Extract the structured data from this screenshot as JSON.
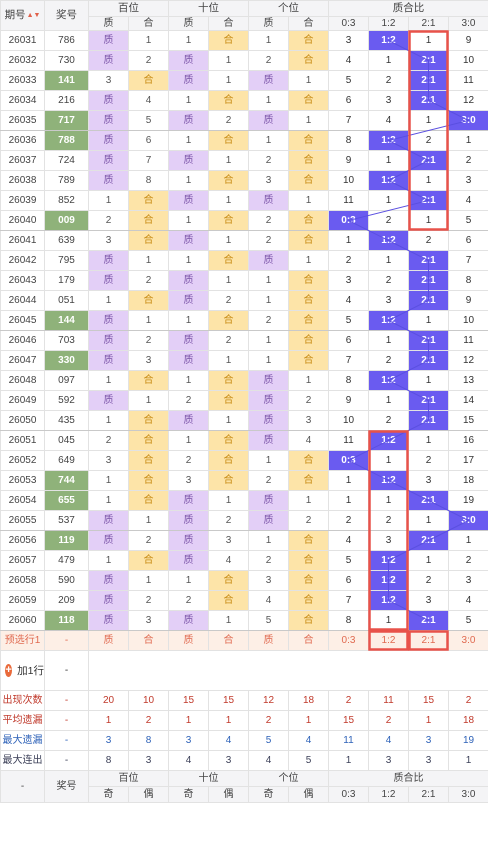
{
  "header": {
    "issue_label": "期号",
    "prize_label": "奖号",
    "groups": [
      "百位",
      "十位",
      "个位",
      "质合比"
    ],
    "sub_zhi": "质",
    "sub_he": "合",
    "ratio_labels": [
      "0:3",
      "1:2",
      "2:1",
      "3:0"
    ]
  },
  "rows": [
    {
      "id": "26031",
      "num": "786",
      "b": "z",
      "s": "h",
      "g": "h",
      "bv": 1,
      "sv": 1,
      "gv": 1,
      "r": [
        3,
        "1:2",
        1,
        9
      ]
    },
    {
      "id": "26032",
      "num": "730",
      "b": "z",
      "s": "z",
      "g": "h",
      "bv": 2,
      "sv": 1,
      "gv": 2,
      "r": [
        4,
        1,
        "2:1",
        10
      ]
    },
    {
      "id": "26033",
      "num": "141",
      "hot": true,
      "b": "h",
      "s": "z",
      "g": "z",
      "bv": 3,
      "sv": 1,
      "gv": 1,
      "r": [
        5,
        2,
        "2:1",
        11
      ]
    },
    {
      "id": "26034",
      "num": "216",
      "b": "z",
      "s": "h",
      "g": "h",
      "bv": 4,
      "sv": 1,
      "gv": 1,
      "r": [
        6,
        3,
        "2:1",
        12
      ]
    },
    {
      "id": "26035",
      "num": "717",
      "hot": true,
      "b": "z",
      "s": "z",
      "g": "z",
      "bv": 5,
      "sv": 2,
      "gv": 1,
      "r": [
        7,
        4,
        1,
        "3:0"
      ]
    },
    {
      "id": "26036",
      "num": "788",
      "hot": true,
      "b": "z",
      "s": "h",
      "g": "h",
      "bv": 6,
      "sv": 1,
      "gv": 1,
      "r": [
        8,
        "1:2",
        2,
        1
      ]
    },
    {
      "id": "26037",
      "num": "724",
      "b": "z",
      "s": "z",
      "g": "h",
      "bv": 7,
      "sv": 1,
      "gv": 2,
      "r": [
        9,
        1,
        "2:1",
        2
      ]
    },
    {
      "id": "26038",
      "num": "789",
      "b": "z",
      "s": "h",
      "g": "h",
      "bv": 8,
      "sv": 1,
      "gv": 3,
      "r": [
        10,
        "1:2",
        1,
        3
      ]
    },
    {
      "id": "26039",
      "num": "852",
      "b": "h",
      "s": "z",
      "g": "z",
      "bv": 1,
      "sv": 1,
      "gv": 1,
      "r": [
        11,
        1,
        "2:1",
        4
      ]
    },
    {
      "id": "26040",
      "num": "009",
      "hot": true,
      "b": "h",
      "s": "h",
      "g": "h",
      "bv": 2,
      "sv": 1,
      "gv": 2,
      "r": [
        "0:3",
        2,
        1,
        5
      ]
    },
    {
      "id": "26041",
      "num": "639",
      "b": "h",
      "s": "z",
      "g": "h",
      "bv": 3,
      "sv": 1,
      "gv": 2,
      "r": [
        1,
        "1:2",
        2,
        6
      ]
    },
    {
      "id": "26042",
      "num": "795",
      "b": "z",
      "s": "h",
      "g": "z",
      "bv": 1,
      "sv": 1,
      "gv": 1,
      "r": [
        2,
        1,
        "2:1",
        7
      ]
    },
    {
      "id": "26043",
      "num": "179",
      "b": "z",
      "s": "z",
      "g": "h",
      "bv": 2,
      "sv": 1,
      "gv": 1,
      "r": [
        3,
        2,
        "2:1",
        8
      ]
    },
    {
      "id": "26044",
      "num": "051",
      "b": "h",
      "s": "z",
      "g": "h",
      "bv": 1,
      "sv": 2,
      "gv": 1,
      "r": [
        4,
        3,
        "2:1",
        9
      ]
    },
    {
      "id": "26045",
      "num": "144",
      "hot": true,
      "b": "z",
      "s": "h",
      "g": "h",
      "bv": 1,
      "sv": 1,
      "gv": 2,
      "r": [
        5,
        "1:2",
        1,
        10
      ]
    },
    {
      "id": "26046",
      "num": "703",
      "b": "z",
      "s": "z",
      "g": "h",
      "bv": 2,
      "sv": 2,
      "gv": 1,
      "r": [
        6,
        1,
        "2:1",
        11
      ]
    },
    {
      "id": "26047",
      "num": "330",
      "hot": true,
      "b": "z",
      "s": "z",
      "g": "h",
      "bv": 3,
      "sv": 1,
      "gv": 1,
      "r": [
        7,
        2,
        "2:1",
        12
      ]
    },
    {
      "id": "26048",
      "num": "097",
      "b": "h",
      "s": "h",
      "g": "z",
      "bv": 1,
      "sv": 1,
      "gv": 1,
      "r": [
        8,
        "1:2",
        1,
        13
      ]
    },
    {
      "id": "26049",
      "num": "592",
      "b": "z",
      "s": "h",
      "g": "z",
      "bv": 1,
      "sv": 2,
      "gv": 2,
      "r": [
        9,
        1,
        "2:1",
        14
      ]
    },
    {
      "id": "26050",
      "num": "435",
      "b": "h",
      "s": "z",
      "g": "z",
      "bv": 1,
      "sv": 1,
      "gv": 3,
      "r": [
        10,
        2,
        "2:1",
        15
      ]
    },
    {
      "id": "26051",
      "num": "045",
      "b": "h",
      "s": "h",
      "g": "z",
      "bv": 2,
      "sv": 1,
      "gv": 4,
      "r": [
        11,
        "1:2",
        1,
        16
      ]
    },
    {
      "id": "26052",
      "num": "649",
      "b": "h",
      "s": "h",
      "g": "h",
      "bv": 3,
      "sv": 2,
      "gv": 1,
      "r": [
        "0:3",
        1,
        2,
        17
      ]
    },
    {
      "id": "26053",
      "num": "744",
      "hot": true,
      "b": "h",
      "s": "h",
      "g": "h",
      "bv": 1,
      "sv": 3,
      "gv": 2,
      "r": [
        1,
        "1:2",
        3,
        18
      ]
    },
    {
      "id": "26054",
      "num": "655",
      "hot": true,
      "b": "h",
      "s": "z",
      "g": "z",
      "bv": 1,
      "sv": 1,
      "gv": 1,
      "r": [
        1,
        1,
        "2:1",
        19
      ]
    },
    {
      "id": "26055",
      "num": "537",
      "b": "z",
      "s": "z",
      "g": "z",
      "bv": 1,
      "sv": 2,
      "gv": 2,
      "r": [
        2,
        2,
        1,
        "3:0"
      ]
    },
    {
      "id": "26056",
      "num": "119",
      "hot": true,
      "b": "z",
      "s": "z",
      "g": "h",
      "bv": 2,
      "sv": 3,
      "gv": 1,
      "r": [
        4,
        3,
        "2:1",
        1
      ]
    },
    {
      "id": "26057",
      "num": "479",
      "b": "h",
      "s": "z",
      "g": "h",
      "bv": 1,
      "sv": 4,
      "gv": 2,
      "r": [
        5,
        "1:2",
        1,
        2
      ]
    },
    {
      "id": "26058",
      "num": "590",
      "b": "z",
      "s": "h",
      "g": "h",
      "bv": 1,
      "sv": 1,
      "gv": 3,
      "r": [
        6,
        "1:2",
        2,
        3
      ]
    },
    {
      "id": "26059",
      "num": "209",
      "b": "z",
      "s": "h",
      "g": "h",
      "bv": 2,
      "sv": 2,
      "gv": 4,
      "r": [
        7,
        "1:2",
        3,
        4
      ]
    },
    {
      "id": "26060",
      "num": "118",
      "hot": true,
      "b": "z",
      "s": "z",
      "g": "h",
      "bv": 3,
      "sv": 1,
      "gv": 5,
      "r": [
        8,
        1,
        "2:1",
        5
      ]
    }
  ],
  "preselect": {
    "label": "预选行1",
    "dash": "-",
    "cells": [
      "质",
      "合",
      "质",
      "合",
      "质",
      "合"
    ],
    "ratios": [
      "0:3",
      "1:2",
      "2:1",
      "3:0"
    ]
  },
  "add_row": {
    "label": "加1行",
    "dash": "-",
    "icon": "plus-icon"
  },
  "footer": {
    "dash": "-",
    "prize_label": "奖号",
    "groups": [
      "百位",
      "十位",
      "个位",
      "质合比"
    ],
    "subs": [
      "奇",
      "偶",
      "奇",
      "偶",
      "奇",
      "偶",
      "0:3",
      "1:2",
      "2:1",
      "3:0"
    ],
    "stats": [
      {
        "label": "出现次数",
        "vals": [
          20,
          10,
          15,
          15,
          12,
          18,
          2,
          11,
          15,
          2
        ]
      },
      {
        "label": "平均遗漏",
        "vals": [
          1,
          2,
          1,
          1,
          2,
          1,
          15,
          2,
          1,
          18
        ]
      },
      {
        "label": "最大遗漏",
        "vals": [
          3,
          8,
          3,
          4,
          5,
          4,
          11,
          4,
          3,
          19
        ]
      },
      {
        "label": "最大连出",
        "vals": [
          8,
          3,
          4,
          3,
          4,
          5,
          1,
          3,
          3,
          1
        ]
      }
    ]
  },
  "colors": {
    "zhi": "#e3cff7",
    "he": "#fde4a8",
    "hit": "#6a5bf0",
    "hot": "#8fb27a",
    "highlight": "#e8524a"
  }
}
